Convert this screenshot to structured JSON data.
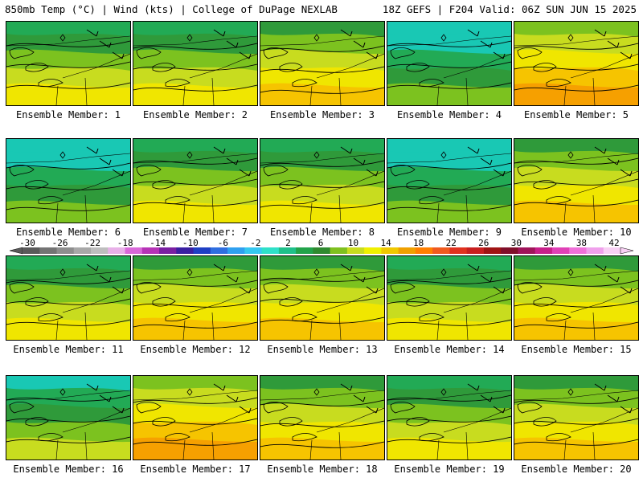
{
  "header": {
    "left": "850mb Temp (°C) | Wind (kts) | College of DuPage NEXLAB",
    "right": "18Z GEFS | F204 Valid: 06Z SUN JUN 15 2025"
  },
  "members": [
    {
      "label": "Ensemble Member: 1",
      "warmth": 0.55
    },
    {
      "label": "Ensemble Member: 2",
      "warmth": 0.45
    },
    {
      "label": "Ensemble Member: 3",
      "warmth": 0.6
    },
    {
      "label": "Ensemble Member: 4",
      "warmth": 0.3
    },
    {
      "label": "Ensemble Member: 5",
      "warmth": 0.72
    },
    {
      "label": "Ensemble Member: 6",
      "warmth": 0.28
    },
    {
      "label": "Ensemble Member: 7",
      "warmth": 0.5
    },
    {
      "label": "Ensemble Member: 8",
      "warmth": 0.45
    },
    {
      "label": "Ensemble Member: 9",
      "warmth": 0.3
    },
    {
      "label": "Ensemble Member: 10",
      "warmth": 0.62
    },
    {
      "label": "Ensemble Member: 11",
      "warmth": 0.48
    },
    {
      "label": "Ensemble Member: 12",
      "warmth": 0.62
    },
    {
      "label": "Ensemble Member: 13",
      "warmth": 0.6
    },
    {
      "label": "Ensemble Member: 14",
      "warmth": 0.55
    },
    {
      "label": "Ensemble Member: 15",
      "warmth": 0.62
    },
    {
      "label": "Ensemble Member: 16",
      "warmth": 0.4
    },
    {
      "label": "Ensemble Member: 17",
      "warmth": 0.72
    },
    {
      "label": "Ensemble Member: 18",
      "warmth": 0.62
    },
    {
      "label": "Ensemble Member: 19",
      "warmth": 0.45
    },
    {
      "label": "Ensemble Member: 20",
      "warmth": 0.62
    }
  ],
  "colorbar": {
    "ticks": [
      "-30",
      "-26",
      "-22",
      "-18",
      "-14",
      "-10",
      "-6",
      "-2",
      "2",
      "6",
      "10",
      "14",
      "18",
      "22",
      "26",
      "30",
      "34",
      "38",
      "42"
    ],
    "colors": [
      "#5a5a5a",
      "#747474",
      "#8e8e8e",
      "#a8a8a8",
      "#bebebe",
      "#e8b0e8",
      "#d968d9",
      "#b633b6",
      "#7a1fa2",
      "#3a1fa2",
      "#1f3fc4",
      "#2f6ee0",
      "#2fa0f0",
      "#35c8f0",
      "#2fe0c8",
      "#1fc08a",
      "#22a34a",
      "#2f8a2f",
      "#7fc01f",
      "#c8dc1f",
      "#f0f000",
      "#f0c800",
      "#f0a000",
      "#ff7f00",
      "#f05a1f",
      "#e0321f",
      "#c81f1f",
      "#a01414",
      "#800f2a",
      "#a0145a",
      "#c81f8a",
      "#e040b6",
      "#f070d9",
      "#f0a0ec",
      "#f8d0f4"
    ]
  }
}
